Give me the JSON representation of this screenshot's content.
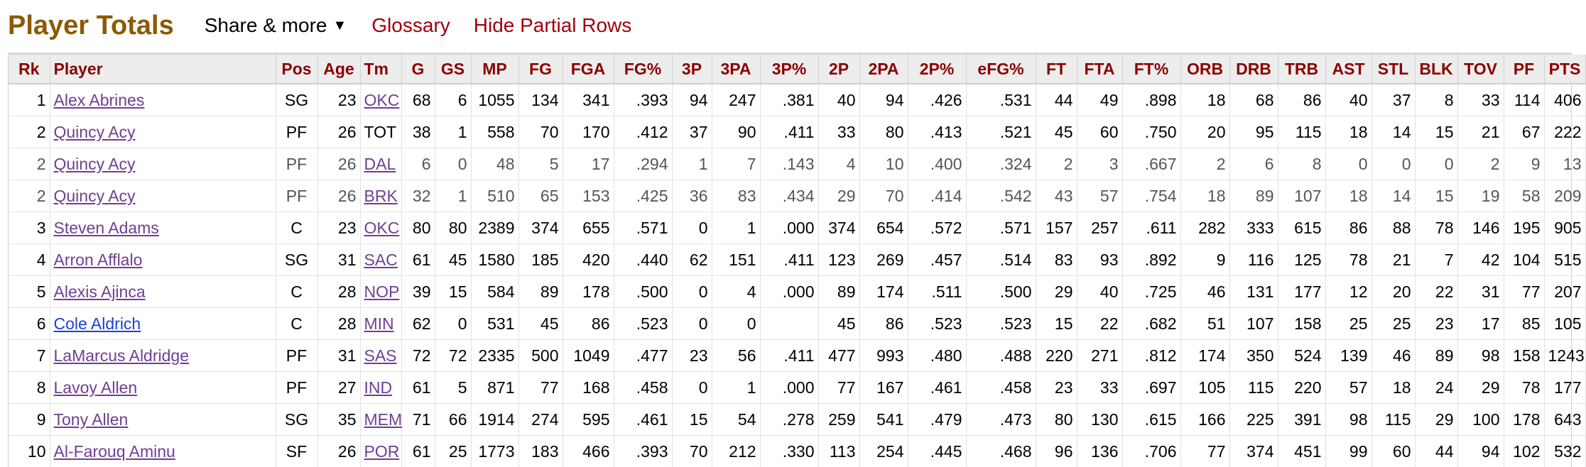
{
  "header": {
    "title": "Player Totals",
    "share_label": "Share & more",
    "share_caret": "▼",
    "glossary_label": "Glossary",
    "hide_partial_label": "Hide Partial Rows"
  },
  "table": {
    "columns": [
      "Rk",
      "Player",
      "Pos",
      "Age",
      "Tm",
      "G",
      "GS",
      "MP",
      "FG",
      "FGA",
      "FG%",
      "3P",
      "3PA",
      "3P%",
      "2P",
      "2PA",
      "2P%",
      "eFG%",
      "FT",
      "FTA",
      "FT%",
      "ORB",
      "DRB",
      "TRB",
      "AST",
      "STL",
      "BLK",
      "TOV",
      "PF",
      "PTS"
    ],
    "rows": [
      [
        "1",
        "Alex Abrines",
        "SG",
        "23",
        "OKC",
        "68",
        "6",
        "1055",
        "134",
        "341",
        ".393",
        "94",
        "247",
        ".381",
        "40",
        "94",
        ".426",
        ".531",
        "44",
        "49",
        ".898",
        "18",
        "68",
        "86",
        "40",
        "37",
        "8",
        "33",
        "114",
        "406"
      ],
      [
        "2",
        "Quincy Acy",
        "PF",
        "26",
        "TOT",
        "38",
        "1",
        "558",
        "70",
        "170",
        ".412",
        "37",
        "90",
        ".411",
        "33",
        "80",
        ".413",
        ".521",
        "45",
        "60",
        ".750",
        "20",
        "95",
        "115",
        "18",
        "14",
        "15",
        "21",
        "67",
        "222"
      ],
      [
        "2",
        "Quincy Acy",
        "PF",
        "26",
        "DAL",
        "6",
        "0",
        "48",
        "5",
        "17",
        ".294",
        "1",
        "7",
        ".143",
        "4",
        "10",
        ".400",
        ".324",
        "2",
        "3",
        ".667",
        "2",
        "6",
        "8",
        "0",
        "0",
        "0",
        "2",
        "9",
        "13"
      ],
      [
        "2",
        "Quincy Acy",
        "PF",
        "26",
        "BRK",
        "32",
        "1",
        "510",
        "65",
        "153",
        ".425",
        "36",
        "83",
        ".434",
        "29",
        "70",
        ".414",
        ".542",
        "43",
        "57",
        ".754",
        "18",
        "89",
        "107",
        "18",
        "14",
        "15",
        "19",
        "58",
        "209"
      ],
      [
        "3",
        "Steven Adams",
        "C",
        "23",
        "OKC",
        "80",
        "80",
        "2389",
        "374",
        "655",
        ".571",
        "0",
        "1",
        ".000",
        "374",
        "654",
        ".572",
        ".571",
        "157",
        "257",
        ".611",
        "282",
        "333",
        "615",
        "86",
        "88",
        "78",
        "146",
        "195",
        "905"
      ],
      [
        "4",
        "Arron Afflalo",
        "SG",
        "31",
        "SAC",
        "61",
        "45",
        "1580",
        "185",
        "420",
        ".440",
        "62",
        "151",
        ".411",
        "123",
        "269",
        ".457",
        ".514",
        "83",
        "93",
        ".892",
        "9",
        "116",
        "125",
        "78",
        "21",
        "7",
        "42",
        "104",
        "515"
      ],
      [
        "5",
        "Alexis Ajinca",
        "C",
        "28",
        "NOP",
        "39",
        "15",
        "584",
        "89",
        "178",
        ".500",
        "0",
        "4",
        ".000",
        "89",
        "174",
        ".511",
        ".500",
        "29",
        "40",
        ".725",
        "46",
        "131",
        "177",
        "12",
        "20",
        "22",
        "31",
        "77",
        "207"
      ],
      [
        "6",
        "Cole Aldrich",
        "C",
        "28",
        "MIN",
        "62",
        "0",
        "531",
        "45",
        "86",
        ".523",
        "0",
        "0",
        "",
        "45",
        "86",
        ".523",
        ".523",
        "15",
        "22",
        ".682",
        "51",
        "107",
        "158",
        "25",
        "25",
        "23",
        "17",
        "85",
        "105"
      ],
      [
        "7",
        "LaMarcus Aldridge",
        "PF",
        "31",
        "SAS",
        "72",
        "72",
        "2335",
        "500",
        "1049",
        ".477",
        "23",
        "56",
        ".411",
        "477",
        "993",
        ".480",
        ".488",
        "220",
        "271",
        ".812",
        "174",
        "350",
        "524",
        "139",
        "46",
        "89",
        "98",
        "158",
        "1243"
      ],
      [
        "8",
        "Lavoy Allen",
        "PF",
        "27",
        "IND",
        "61",
        "5",
        "871",
        "77",
        "168",
        ".458",
        "0",
        "1",
        ".000",
        "77",
        "167",
        ".461",
        ".458",
        "23",
        "33",
        ".697",
        "105",
        "115",
        "220",
        "57",
        "18",
        "24",
        "29",
        "78",
        "177"
      ],
      [
        "9",
        "Tony Allen",
        "SG",
        "35",
        "MEM",
        "71",
        "66",
        "1914",
        "274",
        "595",
        ".461",
        "15",
        "54",
        ".278",
        "259",
        "541",
        ".479",
        ".473",
        "80",
        "130",
        ".615",
        "166",
        "225",
        "391",
        "98",
        "115",
        "29",
        "100",
        "178",
        "643"
      ],
      [
        "10",
        "Al-Farouq Aminu",
        "SF",
        "26",
        "POR",
        "61",
        "25",
        "1773",
        "183",
        "466",
        ".393",
        "70",
        "212",
        ".330",
        "113",
        "254",
        ".445",
        ".468",
        "96",
        "136",
        ".706",
        "77",
        "374",
        "451",
        "99",
        "60",
        "44",
        "94",
        "102",
        "532"
      ]
    ],
    "partial_row_indices": [
      2,
      3
    ],
    "unvisited_link_rows": [
      7
    ],
    "no_link_team_codes": [
      "TOT"
    ]
  },
  "colors": {
    "title": "#8c5a00",
    "header_link": "#a1000b",
    "column_header_text": "#8b0000",
    "column_header_bg": "#ededed",
    "visited_link": "#703e92",
    "unvisited_link": "#1c3fd6"
  }
}
